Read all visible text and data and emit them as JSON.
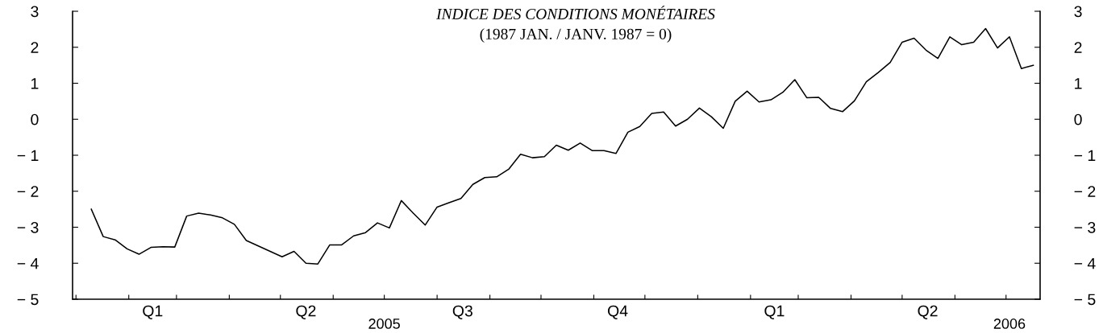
{
  "chart_data": {
    "type": "line",
    "title": "INDICE DES CONDITIONS MONÉTAIRES",
    "subtitle": "(1987 JAN. / JANV. 1987 = 0)",
    "x": [
      "2005-01-10",
      "2005-01-17",
      "2005-01-24",
      "2005-01-31",
      "2005-02-07",
      "2005-02-14",
      "2005-02-21",
      "2005-02-28",
      "2005-03-07",
      "2005-03-14",
      "2005-03-21",
      "2005-03-28",
      "2005-04-04",
      "2005-04-11",
      "2005-04-18",
      "2005-04-25",
      "2005-05-02",
      "2005-05-09",
      "2005-05-16",
      "2005-05-23",
      "2005-05-30",
      "2005-06-06",
      "2005-06-13",
      "2005-06-20",
      "2005-06-27",
      "2005-07-04",
      "2005-07-11",
      "2005-07-18",
      "2005-07-25",
      "2005-08-01",
      "2005-08-08",
      "2005-08-15",
      "2005-08-22",
      "2005-08-29",
      "2005-09-05",
      "2005-09-12",
      "2005-09-19",
      "2005-09-26",
      "2005-10-03",
      "2005-10-10",
      "2005-10-17",
      "2005-10-24",
      "2005-10-31",
      "2005-11-07",
      "2005-11-14",
      "2005-11-21",
      "2005-11-28",
      "2005-12-05",
      "2005-12-12",
      "2005-12-19",
      "2005-12-26",
      "2006-01-02",
      "2006-01-09",
      "2006-01-16",
      "2006-01-23",
      "2006-01-30",
      "2006-02-06",
      "2006-02-13",
      "2006-02-20",
      "2006-02-27",
      "2006-03-06",
      "2006-03-13",
      "2006-03-20",
      "2006-03-27",
      "2006-04-03",
      "2006-04-10",
      "2006-04-17",
      "2006-04-24",
      "2006-05-01",
      "2006-05-08",
      "2006-05-15",
      "2006-05-22",
      "2006-05-29",
      "2006-06-05",
      "2006-06-12",
      "2006-06-19",
      "2006-06-26",
      "2006-07-03",
      "2006-07-10",
      "2006-07-17"
    ],
    "series": [
      {
        "color": "#000000",
        "values": [
          -2.5,
          -3.26,
          -3.35,
          -3.6,
          -3.75,
          -3.56,
          -3.54,
          -3.55,
          -2.69,
          -2.61,
          -2.66,
          -2.74,
          -2.92,
          -3.37,
          -3.52,
          -3.67,
          -3.82,
          -3.67,
          -4.0,
          -4.02,
          -3.49,
          -3.49,
          -3.24,
          -3.15,
          -2.88,
          -3.02,
          -2.26,
          -2.61,
          -2.94,
          -2.44,
          -2.32,
          -2.2,
          -1.81,
          -1.62,
          -1.6,
          -1.39,
          -0.97,
          -1.07,
          -1.04,
          -0.72,
          -0.86,
          -0.66,
          -0.87,
          -0.87,
          -0.95,
          -0.36,
          -0.2,
          0.16,
          0.2,
          -0.19,
          0.0,
          0.31,
          0.07,
          -0.25,
          0.5,
          0.78,
          0.48,
          0.54,
          0.75,
          1.1,
          0.6,
          0.61,
          0.3,
          0.21,
          0.51,
          1.04,
          1.3,
          1.58,
          2.14,
          2.25,
          1.92,
          1.69,
          2.29,
          2.07,
          2.14,
          2.52,
          1.98,
          2.29,
          1.41,
          1.5
        ]
      }
    ],
    "xlim": [
      "2004-12-30",
      "2006-07-21"
    ],
    "xticks": [
      {
        "value": "2005-01-01",
        "label": null
      },
      {
        "value": "2005-02-01",
        "label": null
      },
      {
        "value": "2005-02-15",
        "label": "Q1"
      },
      {
        "value": "2005-03-01",
        "label": null
      },
      {
        "value": "2005-04-01",
        "label": null
      },
      {
        "value": "2005-05-01",
        "label": null
      },
      {
        "value": "2005-05-16",
        "label": "Q2"
      },
      {
        "value": "2005-06-01",
        "label": null
      },
      {
        "value": "2005-07-01",
        "label": null
      },
      {
        "value": "2005-08-01",
        "label": null
      },
      {
        "value": "2005-08-16",
        "label": "Q3"
      },
      {
        "value": "2005-09-01",
        "label": null
      },
      {
        "value": "2005-10-01",
        "label": null
      },
      {
        "value": "2005-11-01",
        "label": null
      },
      {
        "value": "2005-11-15",
        "label": "Q4"
      },
      {
        "value": "2005-12-01",
        "label": null
      },
      {
        "value": "2006-01-01",
        "label": null
      },
      {
        "value": "2006-02-01",
        "label": null
      },
      {
        "value": "2006-02-15",
        "label": "Q1"
      },
      {
        "value": "2006-03-01",
        "label": null
      },
      {
        "value": "2006-04-01",
        "label": null
      },
      {
        "value": "2006-05-01",
        "label": null
      },
      {
        "value": "2006-05-16",
        "label": "Q2"
      },
      {
        "value": "2006-06-01",
        "label": null
      },
      {
        "value": "2006-07-01",
        "label": null
      }
    ],
    "x2lim": [
      "2004-12-30",
      "2006-07-21"
    ],
    "x2ticks": [
      {
        "value": "2005-07-01",
        "label": "2005"
      },
      {
        "value": "2006-07-03",
        "label": "2006"
      }
    ],
    "ylim": [
      -5,
      3
    ],
    "yticks": [
      -5,
      -4,
      -3,
      -2,
      -1,
      0,
      1,
      2,
      3
    ],
    "y2lim": [
      -5,
      3
    ],
    "y2ticks": [
      -5,
      -4,
      -3,
      -2,
      -1,
      0,
      1,
      2,
      3
    ],
    "grid": false,
    "legend": false,
    "marker": "none",
    "line_style": "solid"
  }
}
